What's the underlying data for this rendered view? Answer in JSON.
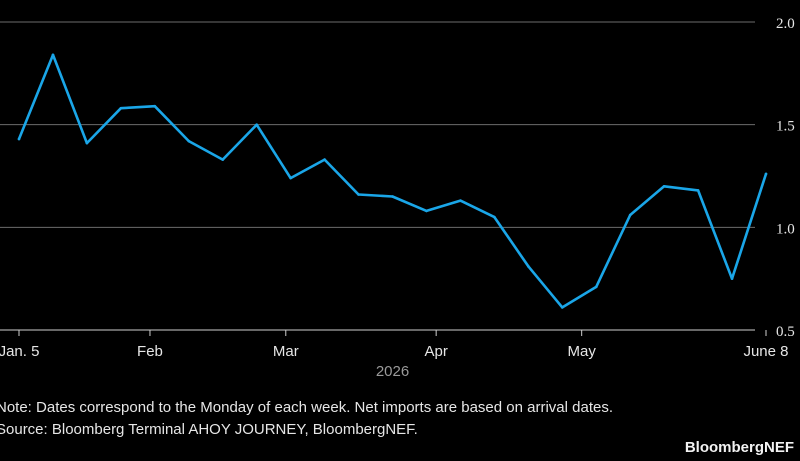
{
  "chart_data": {
    "type": "line",
    "year_label": "2026",
    "x": [
      "2026-01-05",
      "2026-01-12",
      "2026-01-19",
      "2026-01-26",
      "2026-02-02",
      "2026-02-09",
      "2026-02-16",
      "2026-02-23",
      "2026-03-02",
      "2026-03-09",
      "2026-03-16",
      "2026-03-23",
      "2026-03-30",
      "2026-04-06",
      "2026-04-13",
      "2026-04-20",
      "2026-04-27",
      "2026-05-04",
      "2026-05-11",
      "2026-05-18",
      "2026-05-25",
      "2026-06-01",
      "2026-06-08"
    ],
    "series": [
      {
        "values": [
          1.43,
          1.84,
          1.41,
          1.58,
          1.59,
          1.42,
          1.33,
          1.5,
          1.24,
          1.33,
          1.16,
          1.15,
          1.08,
          1.13,
          1.05,
          0.81,
          0.61,
          0.71,
          1.06,
          1.2,
          1.18,
          0.75,
          1.26
        ]
      }
    ],
    "ylim": [
      0.5,
      2.0
    ],
    "yticks": [
      "0.5",
      "1.0",
      "1.5",
      "2.0"
    ],
    "xticks": [
      {
        "label": "Jan. 5",
        "date": "2026-01-05"
      },
      {
        "label": "Feb",
        "date": "2026-02-01"
      },
      {
        "label": "Mar",
        "date": "2026-03-01"
      },
      {
        "label": "Apr",
        "date": "2026-04-01"
      },
      {
        "label": "May",
        "date": "2026-05-01"
      },
      {
        "label": "June 8",
        "date": "2026-06-08"
      }
    ],
    "grid": true,
    "line_color": "#1aa6e8"
  },
  "footer": {
    "note": "Note: Dates correspond to the Monday of each week. Net imports are based on arrival dates.",
    "source": "Source: Bloomberg Terminal AHOY JOURNEY, BloombergNEF.",
    "brand": "BloombergNEF"
  }
}
